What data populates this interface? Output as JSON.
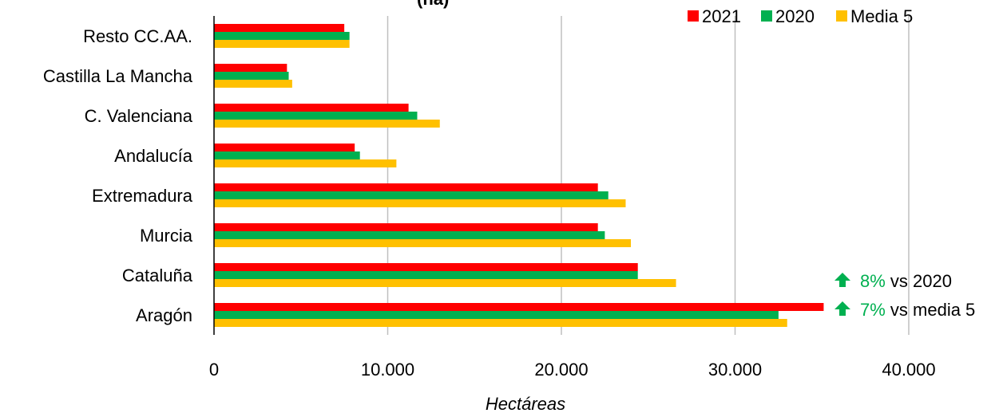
{
  "chart_data": {
    "type": "bar",
    "orientation": "horizontal",
    "title_fragment": "(ha)",
    "categories": [
      "Resto CC.AA.",
      "Castilla La Mancha",
      "C. Valenciana",
      "Andalucía",
      "Extremadura",
      "Murcia",
      "Cataluña",
      "Aragón"
    ],
    "series": [
      {
        "name": "2021",
        "color": "#ff0000",
        "values": [
          7500,
          4200,
          11200,
          8100,
          22100,
          22100,
          24400,
          35100
        ]
      },
      {
        "name": "2020",
        "color": "#00b050",
        "values": [
          7800,
          4300,
          11700,
          8400,
          22700,
          22500,
          24400,
          32500
        ]
      },
      {
        "name": "Media 5",
        "color": "#ffc000",
        "values": [
          7800,
          4500,
          13000,
          10500,
          23700,
          24000,
          26600,
          33000
        ]
      }
    ],
    "xlabel": "Hectáreas",
    "xlim": [
      0,
      40000
    ],
    "xticks": [
      0,
      10000,
      20000,
      30000,
      40000
    ],
    "xtick_labels": [
      "0",
      "10.000",
      "20.000",
      "30.000",
      "40.000"
    ],
    "grid": true,
    "legend_position": "top-right",
    "annotations": [
      {
        "icon": "arrow-up-icon",
        "percent": "8%",
        "text": " vs 2020",
        "color": "#00b050"
      },
      {
        "icon": "arrow-up-icon",
        "percent": "7%",
        "text": " vs media 5",
        "color": "#00b050"
      }
    ]
  }
}
